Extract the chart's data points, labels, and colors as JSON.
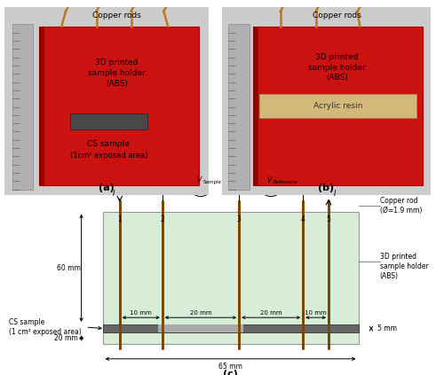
{
  "fig_width": 5.0,
  "fig_height": 4.23,
  "dpi": 100,
  "bg_color": "#ffffff",
  "photo_bg": "#d8d8d8",
  "ruler_color": "#b0b0b0",
  "ruler_edge": "#888888",
  "holder_red": "#cc1111",
  "holder_red_edge": "#aa0000",
  "rod_copper": "#c07820",
  "rod_copper_dark": "#8B5500",
  "acrylic_color": "#d4b87a",
  "acrylic_edge": "#b09050",
  "cs_win_color": "#484848",
  "font_size_photo": 6.5,
  "font_size_label": 8,
  "schematic_holder_fill": "#d8edd8",
  "schematic_holder_edge": "#999999",
  "sample_dark": "#666666",
  "sample_light": "#aaaaaa",
  "dim_color": "#000000",
  "rod_color_schem": "#7a4800",
  "rod_lw": 2.0,
  "copper_rod_label": "Copper rod\n(Ø=1.9 mm)",
  "holder_label": "3D printed\nsample holder\n(ABS)",
  "cs_sample_label": "CS sample\n(1 cm² exposed area)",
  "dim_65mm": "65 mm",
  "dim_60mm": "60 mm",
  "dim_20mm_bot": "20 mm",
  "dim_5mm": "5 mm",
  "dim_10mm_1": "10 mm",
  "dim_20mm_1": "20 mm",
  "dim_20mm_2": "20 mm",
  "dim_10mm_2": "10 mm",
  "rod_numbers": [
    "1",
    "2",
    "3",
    "4",
    "5"
  ]
}
